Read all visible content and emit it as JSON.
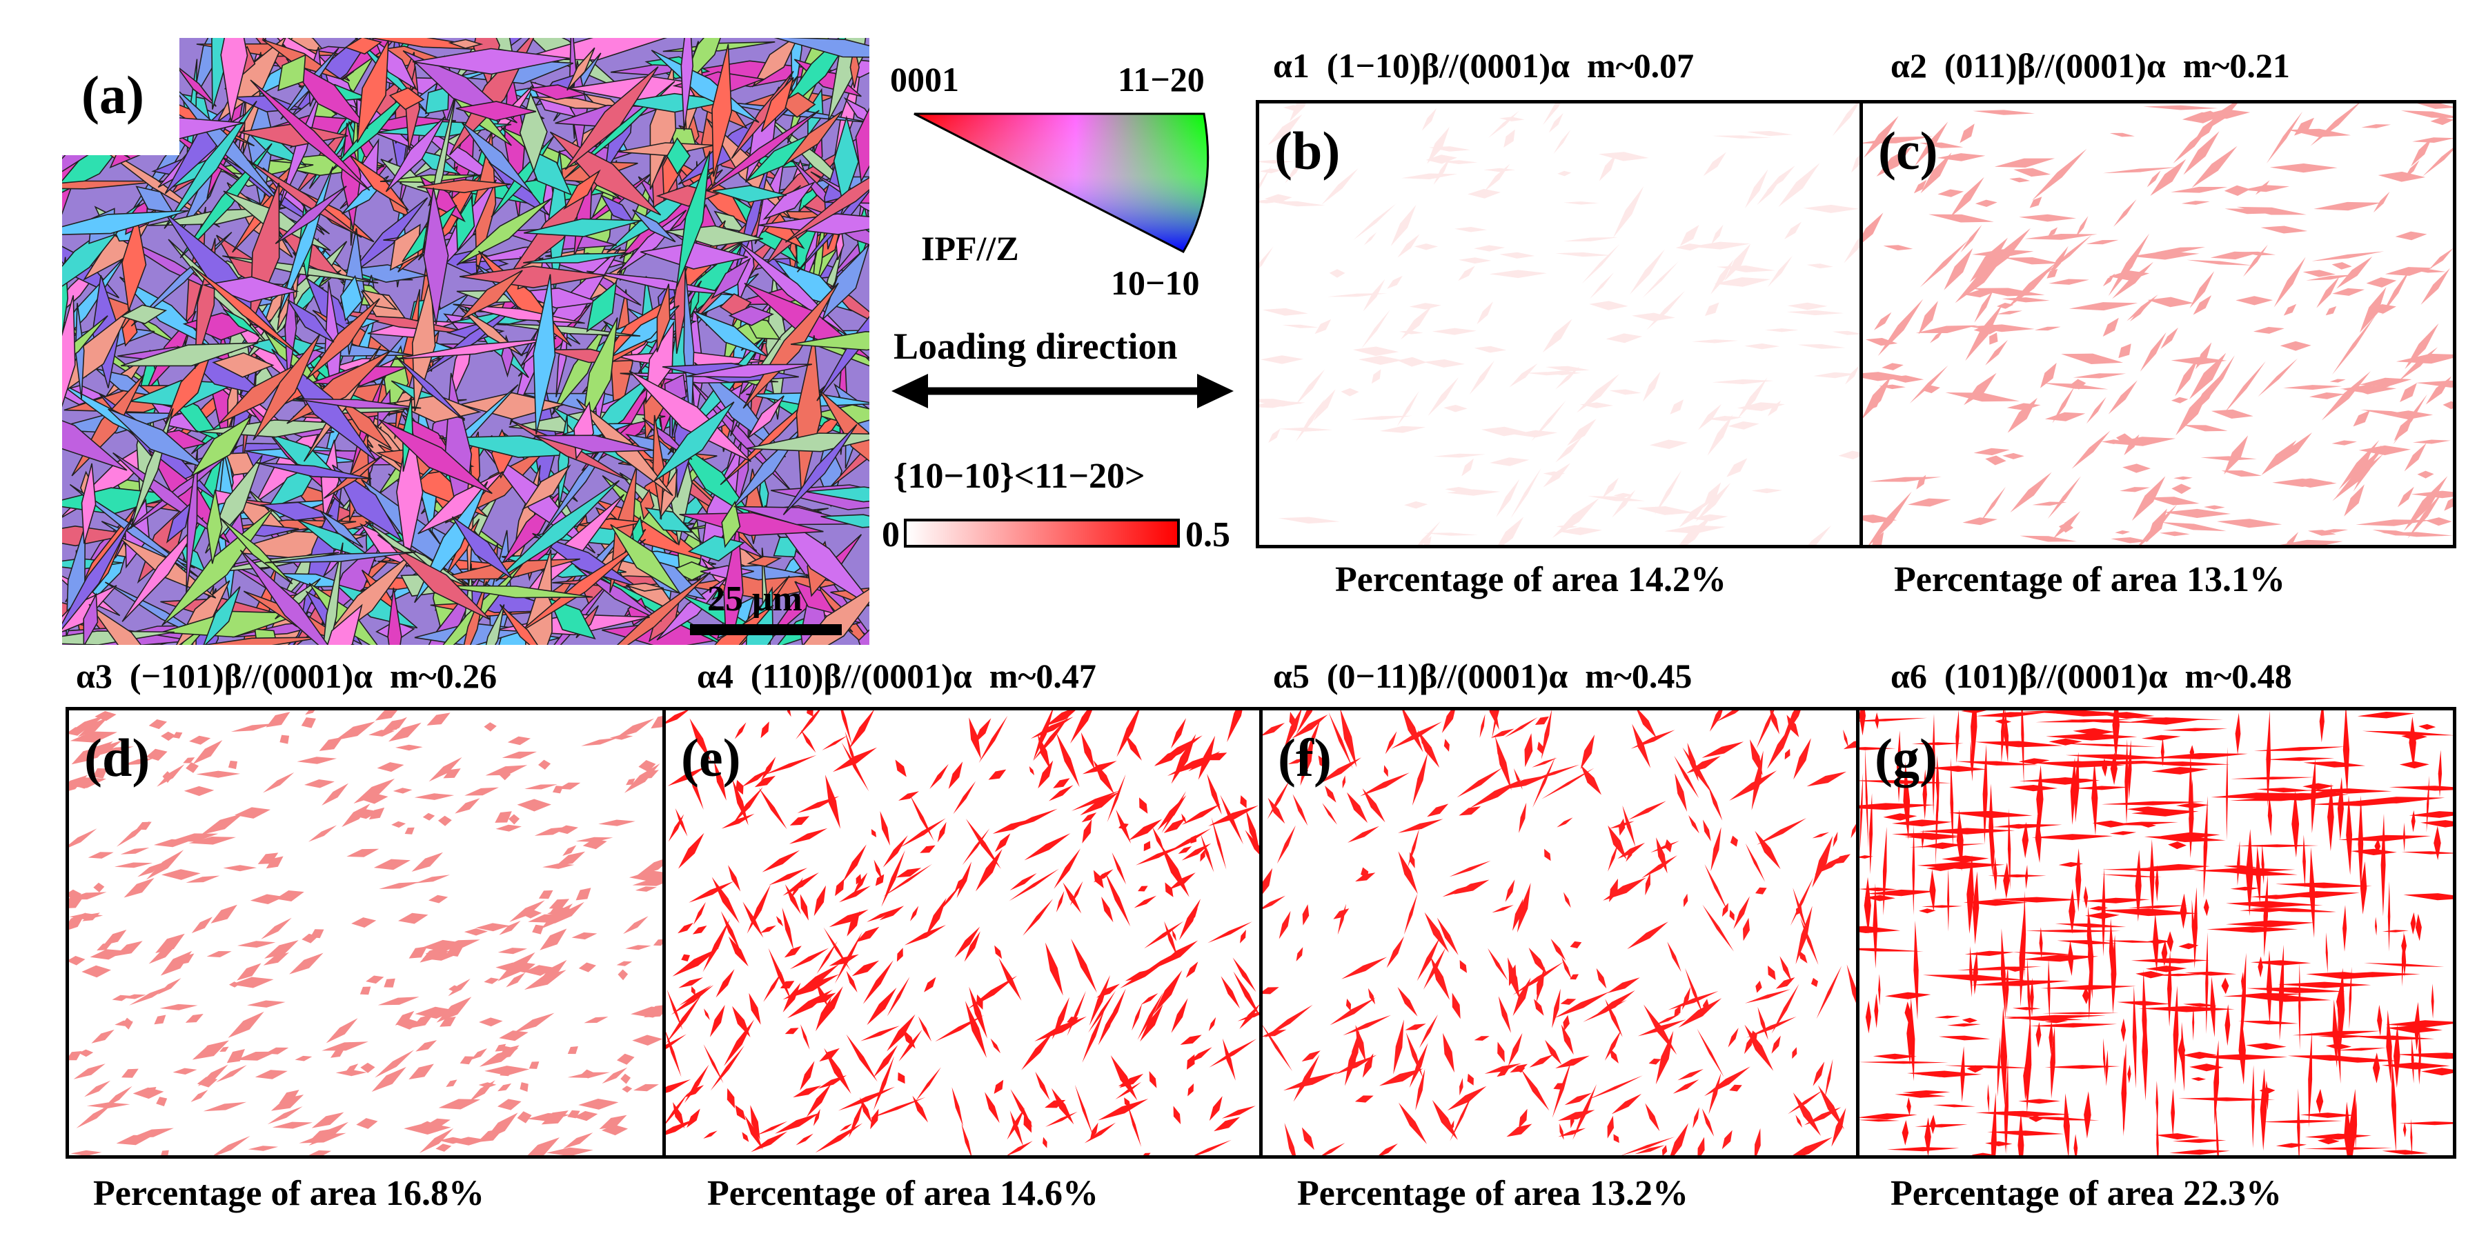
{
  "panel_a": {
    "label": "(a)",
    "scale_bar": "25 μm"
  },
  "legend": {
    "ipf": {
      "corner_0001": "0001",
      "corner_11m20": "11−20",
      "corner_10m10": "10−10",
      "label": "IPF//Z"
    },
    "loading_direction": "Loading direction",
    "slip_system": "{10−10}<11−20>",
    "scale_min": "0",
    "scale_max": "0.5",
    "scale_colors": {
      "low": "#ffffff",
      "high": "#ff0000"
    }
  },
  "panels": [
    {
      "id": "b",
      "label": "(b)",
      "title": "α1  (1−10)β//(0001)α  m~0.07",
      "percentage": "Percentage of area 14.2%",
      "m": 0.07,
      "color": "#fde8e8"
    },
    {
      "id": "c",
      "label": "(c)",
      "title": "α2  (011)β//(0001)α  m~0.21",
      "percentage": "Percentage of area 13.1%",
      "m": 0.21,
      "color": "#f7a1a1"
    },
    {
      "id": "d",
      "label": "(d)",
      "title": "α3  (−101)β//(0001)α  m~0.26",
      "percentage": "Percentage of area 16.8%",
      "m": 0.26,
      "color": "#f48a8a"
    },
    {
      "id": "e",
      "label": "(e)",
      "title": "α4  (110)β//(0001)α  m~0.47",
      "percentage": "Percentage of area 14.6%",
      "m": 0.47,
      "color": "#ff1a1a"
    },
    {
      "id": "f",
      "label": "(f)",
      "title": "α5  (0−11)β//(0001)α  m~0.45",
      "percentage": "Percentage of area 13.2%",
      "m": 0.45,
      "color": "#ff1f1f"
    },
    {
      "id": "g",
      "label": "(g)",
      "title": "α6  (101)β//(0001)α  m~0.48",
      "percentage": "Percentage of area 22.3%",
      "m": 0.48,
      "color": "#ff1212"
    }
  ]
}
